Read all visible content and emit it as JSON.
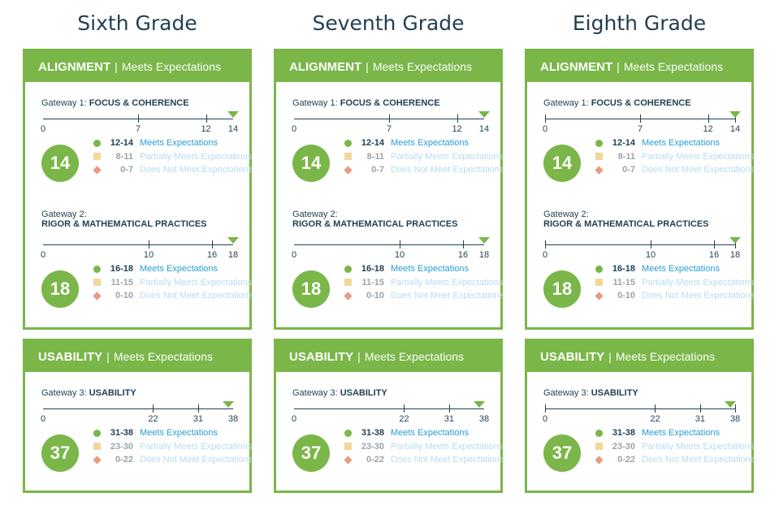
{
  "grades": [
    {
      "title": "Sixth Grade",
      "alignment": {
        "header": {
          "main": "ALIGNMENT",
          "separator": "|",
          "status": "Meets Expectations"
        },
        "gateways": [
          {
            "label_prefix": "Gateway 1: ",
            "label_bold": "FOCUS & COHERENCE",
            "label_line2": "",
            "scale_max": 14,
            "scale_ticks": [
              0,
              7,
              12,
              14
            ],
            "score": 14,
            "legend": [
              {
                "range": "12-14",
                "label": "Meets Expectations",
                "marker": "circle"
              },
              {
                "range": "8-11",
                "label": "Partially Meets Expectations",
                "marker": "square"
              },
              {
                "range": "0-7",
                "label": "Does Not Meet Expectations",
                "marker": "diamond"
              }
            ]
          },
          {
            "label_prefix": "Gateway 2:",
            "label_bold": "RIGOR & MATHEMATICAL PRACTICES",
            "label_line2": "yes",
            "scale_max": 18,
            "scale_ticks": [
              0,
              10,
              16,
              18
            ],
            "score": 18,
            "legend": [
              {
                "range": "16-18",
                "label": "Meets Expectations",
                "marker": "circle"
              },
              {
                "range": "11-15",
                "label": "Partially Meets Expectations",
                "marker": "square"
              },
              {
                "range": "0-10",
                "label": "Does Not Meet Expectations",
                "marker": "diamond"
              }
            ]
          }
        ]
      },
      "usability": {
        "header": {
          "main": "USABILITY",
          "separator": "|",
          "status": "Meets Expectations"
        },
        "gateway": {
          "label_prefix": "Gateway 3: ",
          "label_bold": "USABILITY",
          "scale_max": 38,
          "scale_ticks": [
            0,
            22,
            31,
            38
          ],
          "score": 37,
          "legend": [
            {
              "range": "31-38",
              "label": "Meets Expectations",
              "marker": "circle"
            },
            {
              "range": "23-30",
              "label": "Partially Meets Expectations",
              "marker": "square"
            },
            {
              "range": "0-22",
              "label": "Does Not Meet Expectations",
              "marker": "diamond"
            }
          ]
        }
      }
    },
    {
      "title": "Seventh Grade",
      "alignment": {
        "header": {
          "main": "ALIGNMENT",
          "separator": "|",
          "status": "Meets Expectations"
        },
        "gateways": [
          {
            "label_prefix": "Gateway 1: ",
            "label_bold": "FOCUS & COHERENCE",
            "label_line2": "",
            "scale_max": 14,
            "scale_ticks": [
              0,
              7,
              12,
              14
            ],
            "score": 14,
            "legend": [
              {
                "range": "12-14",
                "label": "Meets Expectations",
                "marker": "circle"
              },
              {
                "range": "8-11",
                "label": "Partially Meets Expectations",
                "marker": "square"
              },
              {
                "range": "0-7",
                "label": "Does Not Meet Expectations",
                "marker": "diamond"
              }
            ]
          },
          {
            "label_prefix": "Gateway 2:",
            "label_bold": "RIGOR & MATHEMATICAL PRACTICES",
            "label_line2": "yes",
            "scale_max": 18,
            "scale_ticks": [
              0,
              10,
              16,
              18
            ],
            "score": 18,
            "legend": [
              {
                "range": "16-18",
                "label": "Meets Expectations",
                "marker": "circle"
              },
              {
                "range": "11-15",
                "label": "Partially Meets Expectations",
                "marker": "square"
              },
              {
                "range": "0-10",
                "label": "Does Not Meet Expectations",
                "marker": "diamond"
              }
            ]
          }
        ]
      },
      "usability": {
        "header": {
          "main": "USABILITY",
          "separator": "|",
          "status": "Meets Expectations"
        },
        "gateway": {
          "label_prefix": "Gateway 3: ",
          "label_bold": "USABILITY",
          "scale_max": 38,
          "scale_ticks": [
            0,
            22,
            31,
            38
          ],
          "score": 37,
          "legend": [
            {
              "range": "31-38",
              "label": "Meets Expectations",
              "marker": "circle"
            },
            {
              "range": "23-30",
              "label": "Partially Meets Expectations",
              "marker": "square"
            },
            {
              "range": "0-22",
              "label": "Does Not Meet Expectations",
              "marker": "diamond"
            }
          ]
        }
      }
    },
    {
      "title": "Eighth Grade",
      "alignment": {
        "header": {
          "main": "ALIGNMENT",
          "separator": "|",
          "status": "Meets Expectations"
        },
        "gateways": [
          {
            "label_prefix": "Gateway 1: ",
            "label_bold": "FOCUS & COHERENCE",
            "label_line2": "",
            "scale_max": 14,
            "scale_ticks": [
              0,
              7,
              12,
              14
            ],
            "score": 14,
            "legend": [
              {
                "range": "12-14",
                "label": "Meets Expectations",
                "marker": "circle"
              },
              {
                "range": "8-11",
                "label": "Partially Meets Expectations",
                "marker": "square"
              },
              {
                "range": "0-7",
                "label": "Does Not Meet Expectations",
                "marker": "diamond"
              }
            ]
          },
          {
            "label_prefix": "Gateway 2:",
            "label_bold": "RIGOR & MATHEMATICAL PRACTICES",
            "label_line2": "yes",
            "scale_max": 18,
            "scale_ticks": [
              0,
              10,
              16,
              18
            ],
            "score": 18,
            "legend": [
              {
                "range": "16-18",
                "label": "Meets Expectations",
                "marker": "circle"
              },
              {
                "range": "11-15",
                "label": "Partially Meets Expectations",
                "marker": "square"
              },
              {
                "range": "0-10",
                "label": "Does Not Meet Expectations",
                "marker": "diamond"
              }
            ]
          }
        ]
      },
      "usability": {
        "header": {
          "main": "USABILITY",
          "separator": "|",
          "status": "Meets Expectations"
        },
        "gateway": {
          "label_prefix": "Gateway 3: ",
          "label_bold": "USABILITY",
          "scale_max": 38,
          "scale_ticks": [
            0,
            22,
            31,
            38
          ],
          "score": 37,
          "legend": [
            {
              "range": "31-38",
              "label": "Meets Expectations",
              "marker": "circle"
            },
            {
              "range": "23-30",
              "label": "Partially Meets Expectations",
              "marker": "square"
            },
            {
              "range": "0-22",
              "label": "Does Not Meet Expectations",
              "marker": "diamond"
            }
          ]
        }
      }
    }
  ],
  "colors": {
    "green": "#7ab648",
    "navy": "#1f3f52",
    "meets": "#2a9dd4",
    "faded": "#b9dcef",
    "square": "#f1d79a",
    "diamond": "#e99a80"
  }
}
